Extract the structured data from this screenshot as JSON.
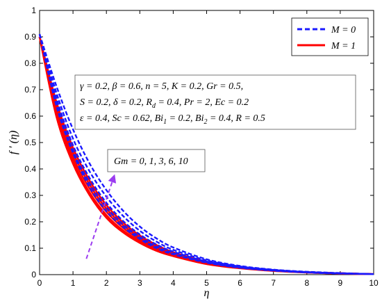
{
  "chart_data": {
    "type": "line",
    "title": "",
    "xlabel": "η",
    "ylabel": "f ′ (η)",
    "xlim": [
      0,
      10
    ],
    "ylim": [
      0,
      1
    ],
    "xticks": [
      "0",
      "1",
      "2",
      "3",
      "4",
      "5",
      "6",
      "7",
      "8",
      "9",
      "10"
    ],
    "yticks": [
      "0",
      "0.1",
      "0.2",
      "0.3",
      "0.4",
      "0.5",
      "0.6",
      "0.7",
      "0.8",
      "0.9",
      "1"
    ],
    "grid": false,
    "legend": {
      "placement": "top-right",
      "entries": [
        {
          "label": "M = 0",
          "color": "#1a1aff",
          "dash": true
        },
        {
          "label": "M = 1",
          "color": "#ff0000",
          "dash": false
        }
      ]
    },
    "x": [
      0,
      0.5,
      1,
      1.5,
      2,
      2.5,
      3,
      3.5,
      4,
      5,
      6,
      7,
      8,
      9,
      10
    ],
    "series": [
      {
        "name": "M = 0, Gm = 0",
        "color": "#1a1aff",
        "values": [
          0.91,
          0.64,
          0.46,
          0.33,
          0.24,
          0.18,
          0.135,
          0.1,
          0.077,
          0.045,
          0.026,
          0.015,
          0.008,
          0.004,
          0.002
        ]
      },
      {
        "name": "M = 0, Gm = 1",
        "color": "#1a1aff",
        "values": [
          0.91,
          0.65,
          0.47,
          0.345,
          0.255,
          0.19,
          0.142,
          0.106,
          0.081,
          0.047,
          0.027,
          0.016,
          0.009,
          0.005,
          0.002
        ]
      },
      {
        "name": "M = 0, Gm = 3",
        "color": "#1a1aff",
        "values": [
          0.91,
          0.67,
          0.49,
          0.365,
          0.272,
          0.203,
          0.152,
          0.114,
          0.087,
          0.05,
          0.029,
          0.017,
          0.009,
          0.005,
          0.002
        ]
      },
      {
        "name": "M = 0, Gm = 6",
        "color": "#1a1aff",
        "values": [
          0.91,
          0.69,
          0.515,
          0.39,
          0.295,
          0.222,
          0.166,
          0.125,
          0.094,
          0.054,
          0.031,
          0.018,
          0.01,
          0.005,
          0.002
        ]
      },
      {
        "name": "M = 0, Gm = 10",
        "color": "#1a1aff",
        "values": [
          0.91,
          0.715,
          0.55,
          0.42,
          0.32,
          0.242,
          0.182,
          0.137,
          0.103,
          0.058,
          0.033,
          0.019,
          0.011,
          0.006,
          0.002
        ]
      },
      {
        "name": "M = 1, Gm = 0",
        "color": "#ff0000",
        "values": [
          0.9,
          0.6,
          0.42,
          0.3,
          0.215,
          0.16,
          0.12,
          0.09,
          0.07,
          0.04,
          0.024,
          0.014,
          0.008,
          0.004,
          0.002
        ]
      },
      {
        "name": "M = 1, Gm = 1",
        "color": "#ff0000",
        "values": [
          0.9,
          0.61,
          0.43,
          0.31,
          0.225,
          0.167,
          0.126,
          0.095,
          0.073,
          0.042,
          0.025,
          0.015,
          0.008,
          0.004,
          0.002
        ]
      },
      {
        "name": "M = 1, Gm = 3",
        "color": "#ff0000",
        "values": [
          0.9,
          0.625,
          0.445,
          0.325,
          0.238,
          0.177,
          0.133,
          0.1,
          0.077,
          0.044,
          0.026,
          0.015,
          0.009,
          0.005,
          0.002
        ]
      },
      {
        "name": "M = 1, Gm = 6",
        "color": "#ff0000",
        "values": [
          0.9,
          0.64,
          0.462,
          0.34,
          0.25,
          0.187,
          0.14,
          0.106,
          0.081,
          0.047,
          0.027,
          0.016,
          0.009,
          0.005,
          0.002
        ]
      },
      {
        "name": "M = 1, Gm = 10",
        "color": "#ff0000",
        "values": [
          0.9,
          0.655,
          0.48,
          0.355,
          0.263,
          0.197,
          0.148,
          0.112,
          0.085,
          0.049,
          0.028,
          0.017,
          0.009,
          0.005,
          0.002
        ]
      }
    ],
    "annotations": {
      "params_line1": "γ = 0.2, β = 0.6, n = 5, K = 0.2, Gr = 0.5,",
      "params_line2_part1": "S = 0.2, δ = 0.2, R",
      "params_line2_sub": "d",
      "params_line2_part2": " = 0.4, Pr = 2, Ec = 0.2",
      "params_line3_part1": "ε = 0.4, Sc = 0.62, Bi",
      "params_line3_sub1": "1",
      "params_line3_part2": " = 0.2, Bi",
      "params_line3_sub2": "2",
      "params_line3_part3": " = 0.4, R = 0.5",
      "gm_label": "Gm = 0, 1, 3, 6, 10",
      "arrow_color": "#9b3cf0",
      "arrow_from": [
        1.4,
        0.06
      ],
      "arrow_to": [
        2.25,
        0.38
      ]
    }
  }
}
